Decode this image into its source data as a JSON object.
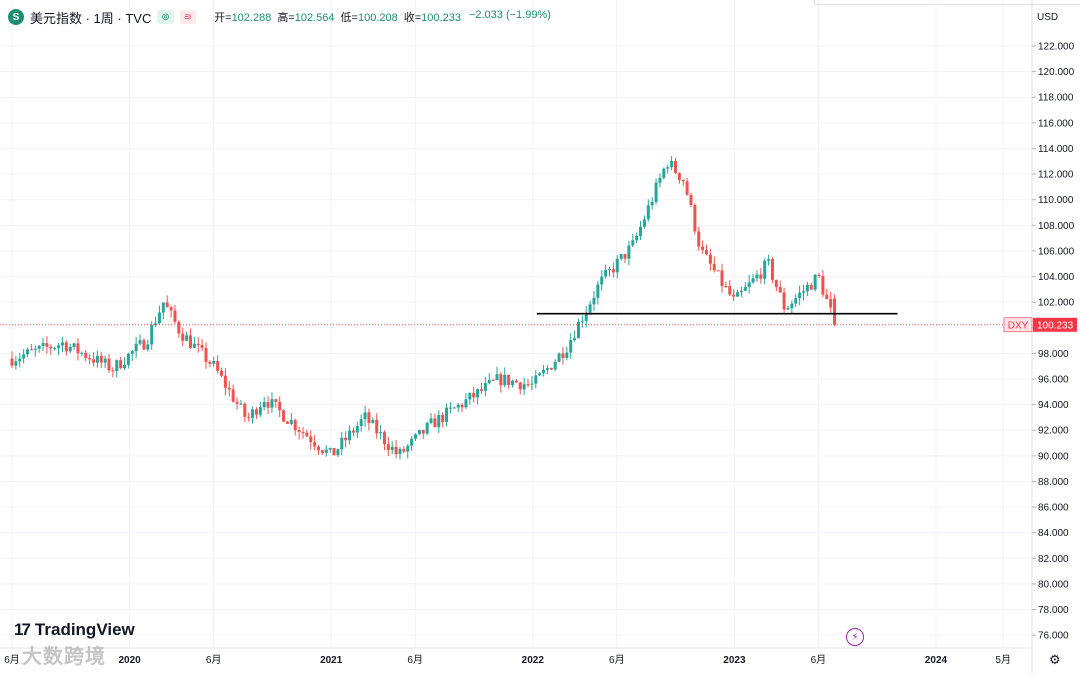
{
  "legend": {
    "symbol_badge": "S",
    "title": "美元指数 · 1周 · TVC",
    "eye_pill": "⊚",
    "wave_pill": "≋",
    "open_label": "开=",
    "open_value": "102.288",
    "high_label": "高=",
    "high_value": "102.564",
    "low_label": "低=",
    "low_value": "100.208",
    "close_label": "收=",
    "close_value": "100.233",
    "change": "−2.033 (−1.99%)"
  },
  "axis": {
    "currency": "USD",
    "price_ticks": [
      "122.000",
      "120.000",
      "118.000",
      "116.000",
      "114.000",
      "112.000",
      "110.000",
      "108.000",
      "106.000",
      "104.000",
      "102.000",
      "100.000",
      "98.000",
      "96.000",
      "94.000",
      "92.000",
      "90.000",
      "88.000",
      "86.000",
      "84.000",
      "82.000",
      "80.000",
      "78.000",
      "76.000"
    ],
    "time_labels": [
      {
        "text": "6月",
        "year": false
      },
      {
        "text": "2020",
        "year": true
      },
      {
        "text": "6月",
        "year": false
      },
      {
        "text": "2021",
        "year": true
      },
      {
        "text": "6月",
        "year": false
      },
      {
        "text": "2022",
        "year": true
      },
      {
        "text": "6月",
        "year": false
      },
      {
        "text": "2023",
        "year": true
      },
      {
        "text": "6月",
        "year": false
      },
      {
        "text": "2024",
        "year": true
      },
      {
        "text": "5月",
        "year": false
      }
    ]
  },
  "price_tag": {
    "symbol": "DXY",
    "value": "100.233"
  },
  "branding": {
    "logo_mark": "17",
    "logo_text": "TradingView",
    "watermark": "大数跨境"
  },
  "colors": {
    "up": "#26a69a",
    "down": "#ef5350",
    "tag": "#f23645",
    "grid": "#f0f3fa"
  },
  "chart_data": {
    "type": "candlestick",
    "symbol": "DXY",
    "interval": "1周",
    "ylim": [
      75,
      123
    ],
    "y_ticks": [
      122,
      120,
      118,
      116,
      114,
      112,
      110,
      108,
      106,
      104,
      102,
      100,
      98,
      96,
      94,
      92,
      90,
      88,
      86,
      84,
      82,
      80,
      78,
      76
    ],
    "x_range": [
      "2019-06",
      "2024-06"
    ],
    "last_close": 100.233,
    "horizontal_line": {
      "value": 101.1,
      "from": "2022-01",
      "to": "2023-10"
    },
    "weekly_close_path": [
      {
        "date": "2019-06",
        "close": 97.6
      },
      {
        "date": "2019-09",
        "close": 98.8
      },
      {
        "date": "2019-12",
        "close": 96.8
      },
      {
        "date": "2020-02",
        "close": 99.0
      },
      {
        "date": "2020-03",
        "close": 102.0
      },
      {
        "date": "2020-04",
        "close": 99.7
      },
      {
        "date": "2020-06",
        "close": 97.0
      },
      {
        "date": "2020-08",
        "close": 92.8
      },
      {
        "date": "2020-09",
        "close": 94.5
      },
      {
        "date": "2021-01",
        "close": 90.0
      },
      {
        "date": "2021-03",
        "close": 93.0
      },
      {
        "date": "2021-05",
        "close": 90.0
      },
      {
        "date": "2021-07",
        "close": 92.5
      },
      {
        "date": "2021-11",
        "close": 96.0
      },
      {
        "date": "2022-01",
        "close": 95.5
      },
      {
        "date": "2022-03",
        "close": 98.5
      },
      {
        "date": "2022-05",
        "close": 103.5
      },
      {
        "date": "2022-07",
        "close": 106.5
      },
      {
        "date": "2022-09",
        "close": 113.0
      },
      {
        "date": "2022-10",
        "close": 111.5
      },
      {
        "date": "2022-11",
        "close": 106.0
      },
      {
        "date": "2023-01",
        "close": 102.0
      },
      {
        "date": "2023-03",
        "close": 105.0
      },
      {
        "date": "2023-04",
        "close": 101.5
      },
      {
        "date": "2023-06",
        "close": 104.0
      },
      {
        "date": "2023-07",
        "close": 100.2
      }
    ]
  }
}
